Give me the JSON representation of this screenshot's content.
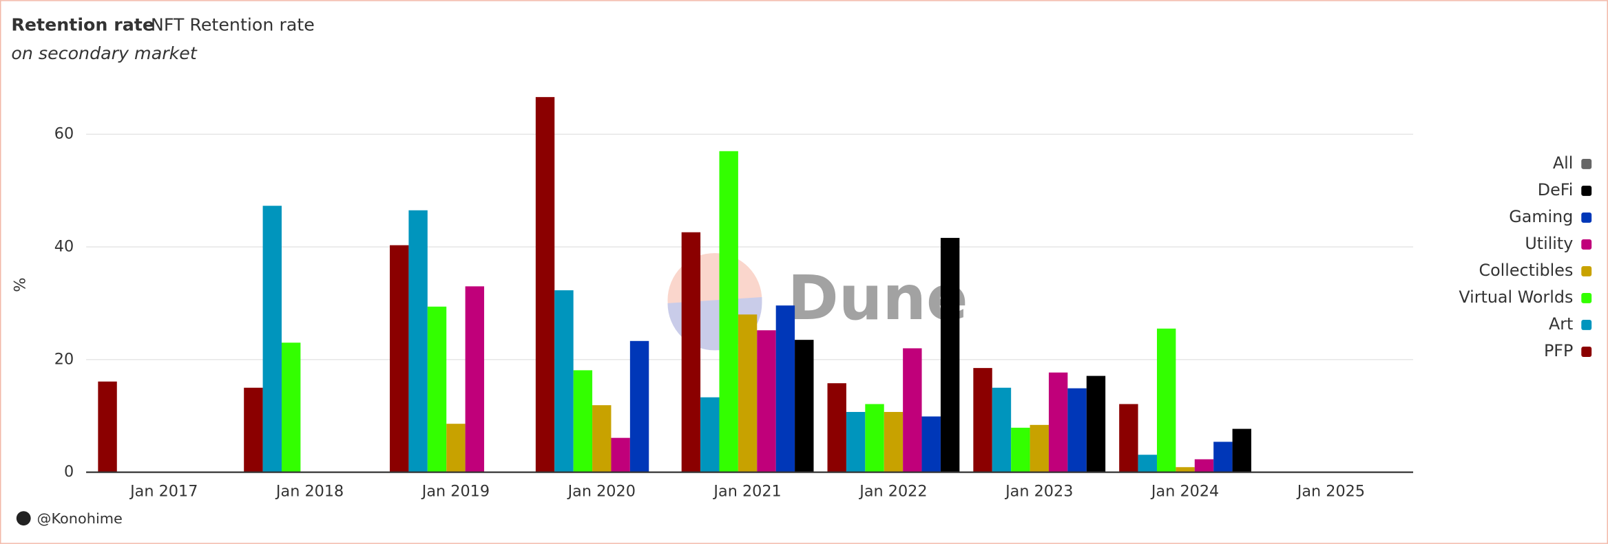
{
  "chart_data": {
    "type": "bar",
    "title": "Retention rate",
    "subtitle_main": "NFT Retention rate",
    "subtitle": "on secondary market",
    "y_label": "%",
    "watermark": "Dune",
    "credit": "@Konohime",
    "categories": [
      "Jan 2017",
      "Jan 2018",
      "Jan 2019",
      "Jan 2020",
      "Jan 2021",
      "Jan 2022",
      "Jan 2023",
      "Jan 2024",
      "Jan 2025"
    ],
    "series": [
      {
        "name": "PFP",
        "color": "#8b0000",
        "values": [
          16.1,
          15,
          40.3,
          66.6,
          42.6,
          15.8,
          18.5,
          12.1,
          null
        ]
      },
      {
        "name": "Art",
        "color": "#0095bd",
        "values": [
          null,
          47.3,
          46.5,
          32.3,
          13.3,
          10.7,
          15,
          3.1,
          null
        ]
      },
      {
        "name": "Virtual Worlds",
        "color": "#33ff00",
        "values": [
          null,
          23,
          29.4,
          18.1,
          57,
          12.1,
          7.9,
          25.5,
          null
        ]
      },
      {
        "name": "Collectibles",
        "color": "#c8a200",
        "values": [
          null,
          null,
          8.6,
          11.9,
          28,
          10.7,
          8.4,
          0.9,
          null
        ]
      },
      {
        "name": "Utility",
        "color": "#c0007a",
        "values": [
          null,
          null,
          33,
          6.1,
          25.2,
          22,
          17.7,
          2.3,
          null
        ]
      },
      {
        "name": "Gaming",
        "color": "#0037b8",
        "values": [
          null,
          null,
          null,
          23.3,
          29.6,
          9.9,
          14.9,
          5.4,
          null
        ]
      },
      {
        "name": "DeFi",
        "color": "#000000",
        "values": [
          null,
          null,
          null,
          null,
          23.5,
          41.6,
          17.1,
          7.7,
          null
        ]
      },
      {
        "name": "All",
        "color": "#666666",
        "values": [
          null,
          null,
          null,
          null,
          null,
          null,
          null,
          null,
          null
        ]
      }
    ],
    "ylim": [
      0,
      70
    ],
    "yticks": [
      0,
      20,
      40,
      60
    ],
    "grid": true,
    "legend": "right"
  }
}
